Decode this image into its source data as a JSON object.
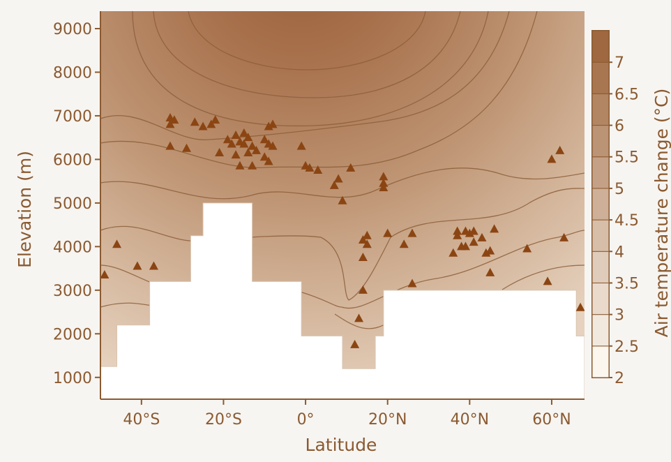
{
  "chart_data": {
    "type": "heatmap",
    "xlabel": "Latitude",
    "ylabel": "Elevation (m)",
    "x_ticks": [
      {
        "value": -40,
        "label": "40°S"
      },
      {
        "value": -20,
        "label": "20°S"
      },
      {
        "value": 0,
        "label": "0°"
      },
      {
        "value": 20,
        "label": "20°N"
      },
      {
        "value": 40,
        "label": "40°N"
      },
      {
        "value": 60,
        "label": "60°N"
      }
    ],
    "y_ticks": [
      1000,
      2000,
      3000,
      4000,
      5000,
      6000,
      7000,
      8000,
      9000
    ],
    "xlim": [
      -50,
      68
    ],
    "ylim": [
      500,
      9400
    ],
    "colorbar": {
      "label": "Air temperature change (°C)",
      "ticks": [
        "2",
        "2.5",
        "3",
        "3.5",
        "4",
        "4.5",
        "5",
        "5.5",
        "6",
        "6.5",
        "7"
      ],
      "range": [
        2,
        7.5
      ]
    },
    "colors": {
      "low": "#fbf7ef",
      "high": "#a06840",
      "axis": "#8a5a30",
      "marker": "#8b4513",
      "contour": "#8d5f3a"
    },
    "terrain_mask_steps": [
      [
        -50,
        1250
      ],
      [
        -46,
        2200
      ],
      [
        -38,
        3200
      ],
      [
        -28,
        4250
      ],
      [
        -25,
        5000
      ],
      [
        -13,
        3200
      ],
      [
        -1,
        1950
      ],
      [
        9,
        1200
      ],
      [
        17,
        1950
      ],
      [
        19,
        3000
      ],
      [
        66,
        1950
      ],
      [
        68,
        1950
      ]
    ],
    "sites": [
      [
        -49,
        3350
      ],
      [
        -46,
        4050
      ],
      [
        -41,
        3550
      ],
      [
        -37,
        3550
      ],
      [
        -33,
        6950
      ],
      [
        -33,
        6800
      ],
      [
        -32,
        6900
      ],
      [
        -33,
        6300
      ],
      [
        -29,
        6250
      ],
      [
        -27,
        6850
      ],
      [
        -25,
        6750
      ],
      [
        -23,
        6800
      ],
      [
        -22,
        6900
      ],
      [
        -21,
        6150
      ],
      [
        -19,
        6450
      ],
      [
        -18,
        6350
      ],
      [
        -17,
        6550
      ],
      [
        -16,
        6400
      ],
      [
        -15,
        6600
      ],
      [
        -15,
        6350
      ],
      [
        -14,
        6500
      ],
      [
        -13,
        6300
      ],
      [
        -17,
        6100
      ],
      [
        -16,
        5850
      ],
      [
        -14,
        6150
      ],
      [
        -13,
        5850
      ],
      [
        -12,
        6200
      ],
      [
        -10,
        6450
      ],
      [
        -9,
        6750
      ],
      [
        -9,
        6350
      ],
      [
        -10,
        6050
      ],
      [
        -9,
        5950
      ],
      [
        -8,
        6300
      ],
      [
        -8,
        6800
      ],
      [
        -1,
        6300
      ],
      [
        0,
        5850
      ],
      [
        1,
        5800
      ],
      [
        3,
        5750
      ],
      [
        7,
        5400
      ],
      [
        8,
        5550
      ],
      [
        9,
        5050
      ],
      [
        11,
        5800
      ],
      [
        12,
        1750
      ],
      [
        13,
        2350
      ],
      [
        14,
        3000
      ],
      [
        14,
        3750
      ],
      [
        14,
        4150
      ],
      [
        15,
        4250
      ],
      [
        15,
        4050
      ],
      [
        19,
        5600
      ],
      [
        19,
        5450
      ],
      [
        19,
        5350
      ],
      [
        20,
        4300
      ],
      [
        24,
        4050
      ],
      [
        26,
        3150
      ],
      [
        26,
        4300
      ],
      [
        36,
        3850
      ],
      [
        37,
        4350
      ],
      [
        37,
        4250
      ],
      [
        38,
        4000
      ],
      [
        39,
        4350
      ],
      [
        39,
        4000
      ],
      [
        40,
        4300
      ],
      [
        41,
        4350
      ],
      [
        41,
        4100
      ],
      [
        43,
        4200
      ],
      [
        44,
        3850
      ],
      [
        45,
        3900
      ],
      [
        45,
        3400
      ],
      [
        46,
        4400
      ],
      [
        54,
        3950
      ],
      [
        59,
        3200
      ],
      [
        60,
        6000
      ],
      [
        62,
        6200
      ],
      [
        63,
        4200
      ],
      [
        67,
        2600
      ]
    ]
  }
}
